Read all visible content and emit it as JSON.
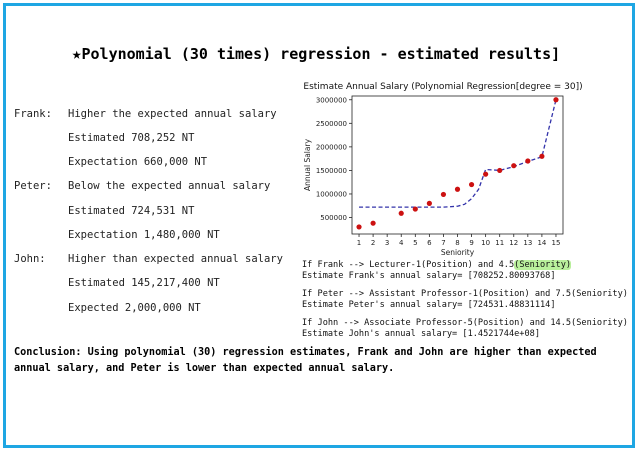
{
  "slide": {
    "title": "Polynomial (30 times) regression - estimated results]",
    "star_icon": "★"
  },
  "people": [
    {
      "name": "Frank:",
      "line1": "Higher the expected annual salary",
      "line2": "Estimated 708,252 NT",
      "line3": "Expectation 660,000 NT"
    },
    {
      "name": "Peter:",
      "line1": "Below the expected annual salary",
      "line2": "Estimated 724,531 NT",
      "line3": "Expectation 1,480,000 NT"
    },
    {
      "name": "John:",
      "line1": "Higher than expected annual salary",
      "line2": "Estimated 145,217,400 NT",
      "line3": "Expected 2,000,000 NT"
    }
  ],
  "code_output": {
    "frank_cmd_a": "If Frank --> Lecturer-1(Position) and 4.5",
    "frank_cmd_b": "(Seniority)",
    "frank_result": "Estimate Frank's annual salary= [708252.80093768]",
    "peter_cmd": "If Peter --> Assistant Professor-1(Position) and 7.5(Seniority)",
    "peter_result": "Estimate Peter's annual salary= [724531.48831114]",
    "john_cmd": "If John --> Associate Professor-5(Position) and 14.5(Seniority)",
    "john_result": "Estimate John's annual salary= [1.4521744e+08]"
  },
  "conclusion": "Conclusion: Using polynomial (30) regression estimates, Frank and John are higher than expected annual salary, and Peter is lower than expected annual salary.",
  "chart_data": {
    "type": "scatter",
    "title": "Estimate Annual Salary (Polynomial Regression[degree = 30])",
    "xlabel": "Seniority",
    "ylabel": "Annual Salary",
    "xlim": [
      0.5,
      15.5
    ],
    "ylim": [
      150000,
      3080000
    ],
    "x_ticks": [
      1,
      2,
      3,
      4,
      5,
      6,
      7,
      8,
      9,
      10,
      11,
      12,
      13,
      14,
      15
    ],
    "y_ticks": [
      500000,
      1000000,
      1500000,
      2000000,
      2500000,
      3000000
    ],
    "y_tick_labels": [
      "500000",
      "1000000",
      "1500000",
      "2000000",
      "2500000",
      "3000000"
    ],
    "points": {
      "x": [
        1,
        2,
        4,
        5,
        6,
        7,
        8,
        9,
        10,
        11,
        12,
        13,
        14,
        15
      ],
      "y": [
        300000,
        380000,
        590000,
        680000,
        800000,
        990000,
        1100000,
        1200000,
        1420000,
        1500000,
        1600000,
        1700000,
        1800000,
        3000000
      ],
      "color": "#cc1111"
    },
    "fit_line": {
      "x": [
        1,
        2,
        3,
        4,
        5,
        6,
        7,
        8,
        8.5,
        9,
        9.5,
        10,
        11,
        12,
        13,
        14,
        15
      ],
      "y": [
        720000,
        720000,
        720000,
        720000,
        720000,
        720000,
        720000,
        740000,
        780000,
        900000,
        1100000,
        1520000,
        1500000,
        1580000,
        1690000,
        1790000,
        3000000
      ],
      "color": "#3333aa",
      "style": "dashed"
    },
    "grid": false
  }
}
